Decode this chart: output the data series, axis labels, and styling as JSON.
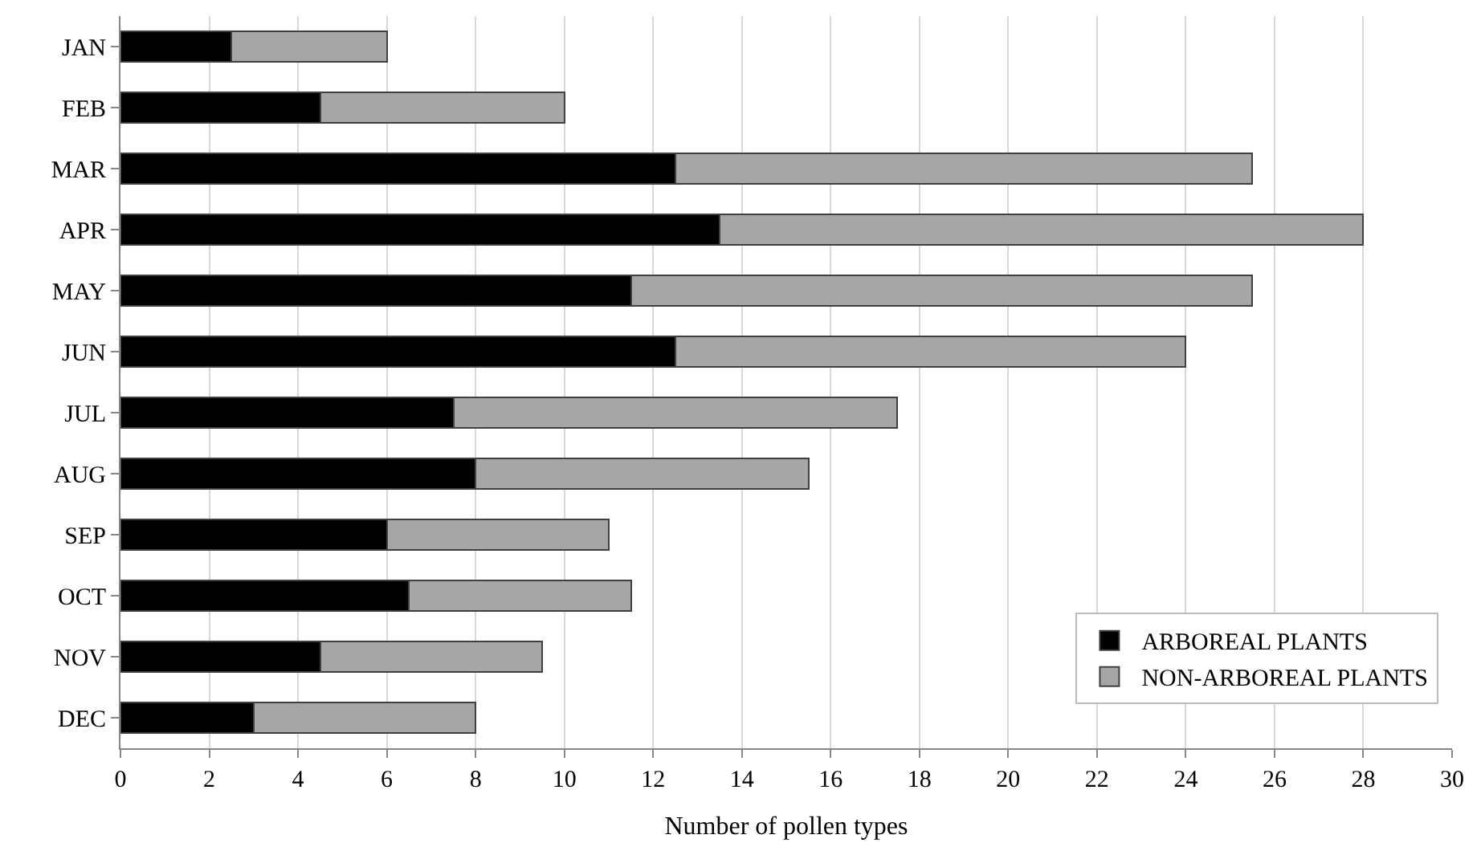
{
  "chart_data": {
    "type": "bar",
    "orientation": "horizontal",
    "stacked": true,
    "xlabel": "Number of pollen types",
    "categories": [
      "JAN",
      "FEB",
      "MAR",
      "APR",
      "MAY",
      "JUN",
      "JUL",
      "AUG",
      "SEP",
      "OCT",
      "NOV",
      "DEC"
    ],
    "series": [
      {
        "name": "ARBOREAL PLANTS",
        "color": "#000000",
        "values": [
          2.5,
          4.5,
          12.5,
          13.5,
          11.5,
          12.5,
          7.5,
          8,
          6,
          6.5,
          4.5,
          3
        ]
      },
      {
        "name": "NON-ARBOREAL PLANTS",
        "color": "#a6a6a6",
        "values": [
          3.5,
          5.5,
          13,
          14.5,
          14,
          11.5,
          10,
          7.5,
          5,
          5,
          5,
          5
        ]
      }
    ],
    "xlim": [
      0,
      30
    ],
    "xticks": [
      0,
      2,
      4,
      6,
      8,
      10,
      12,
      14,
      16,
      18,
      20,
      22,
      24,
      26,
      28,
      30
    ],
    "grid": "x",
    "legend": "bottom right"
  }
}
